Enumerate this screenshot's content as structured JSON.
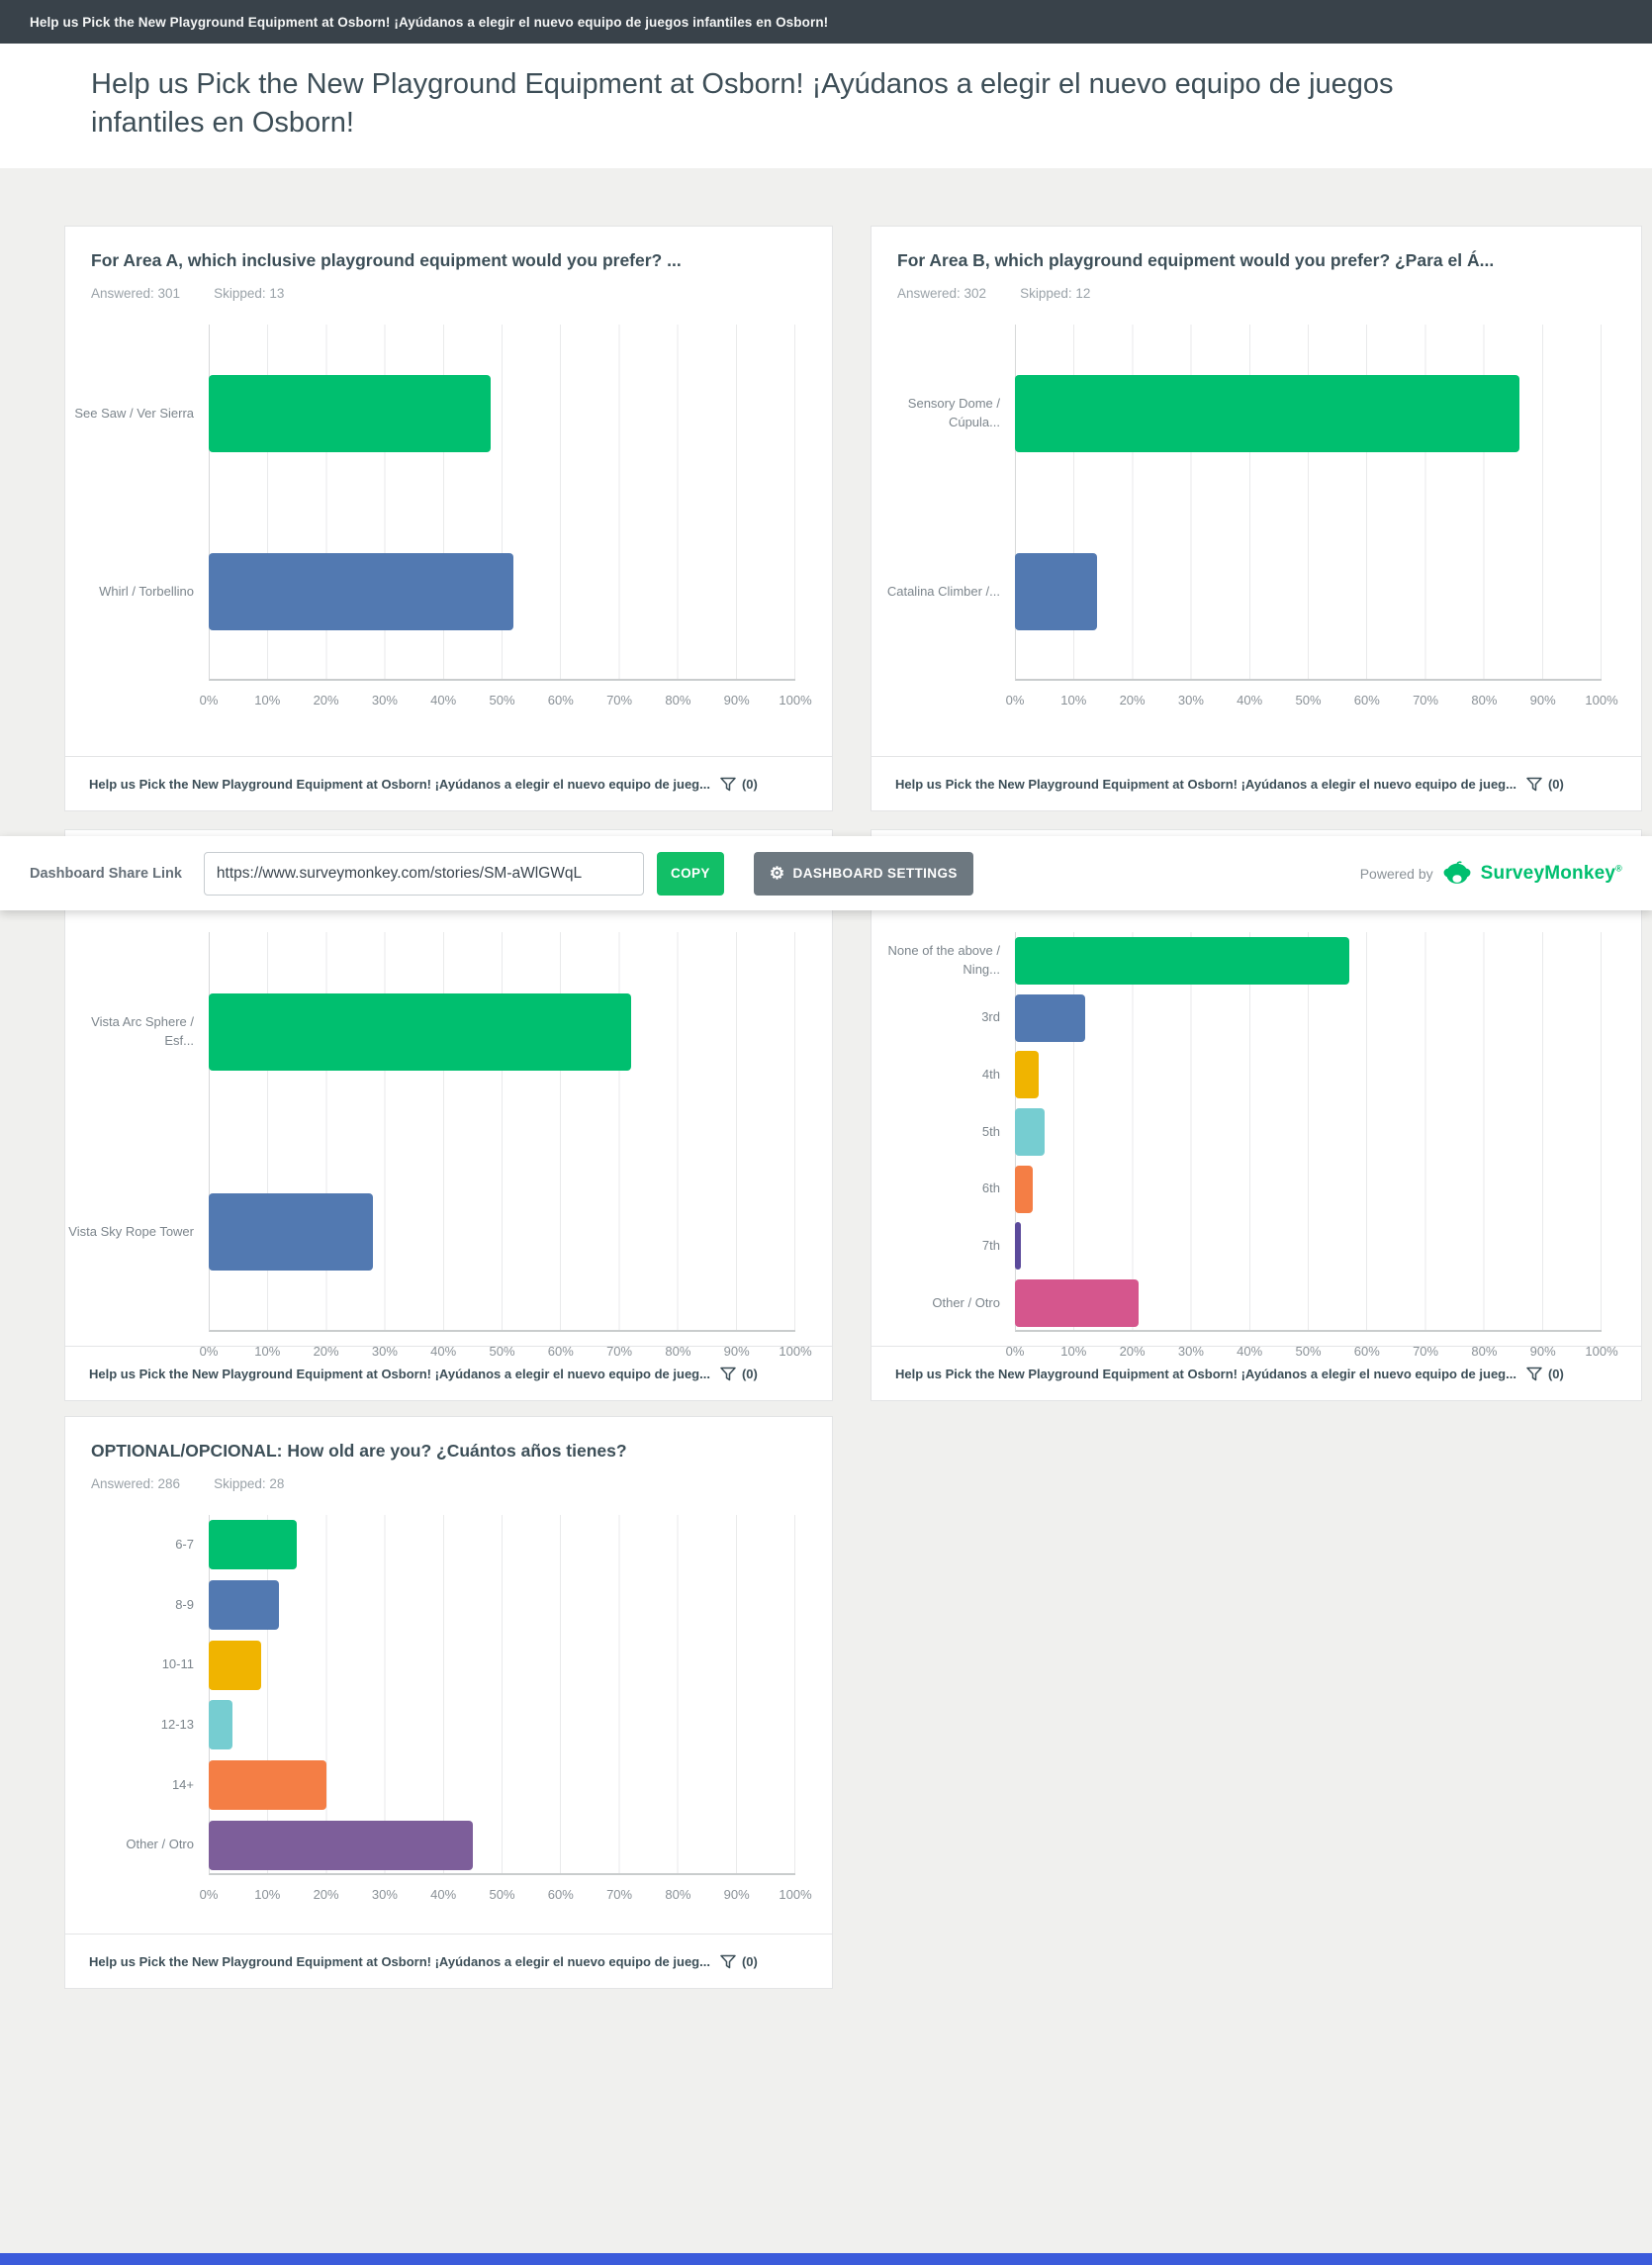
{
  "top_bar": {
    "title": "Help us Pick the New Playground Equipment at Osborn! ¡Ayúdanos a elegir el nuevo equipo de juegos infantiles en Osborn!"
  },
  "header": {
    "title": "Help us Pick the New Playground Equipment at Osborn! ¡Ayúdanos a elegir el nuevo equipo de juegos infantiles en Osborn!"
  },
  "share_bar": {
    "label": "Dashboard Share Link",
    "url": "https://www.surveymonkey.com/stories/SM-aWlGWqL",
    "copy": "COPY",
    "settings": "DASHBOARD SETTINGS",
    "powered_by": "Powered by",
    "brand": "SurveyMonkey",
    "brand_mark": "®"
  },
  "card_footer": {
    "text": "Help us Pick the New Playground Equipment at Osborn! ¡Ayúdanos a elegir el nuevo equipo de jueg...",
    "filter_count": "(0)"
  },
  "colors": {
    "green": "#00BF6F",
    "blue": "#5279B1",
    "yellow": "#F0B400",
    "teal": "#76CDD1",
    "orange": "#F47E45",
    "dark_purple": "#5B4A9B",
    "pink": "#D5568D",
    "purple": "#7D5E9A",
    "topbar_bg": "#39424A",
    "copy_button": "#12BF67",
    "settings_button": "#6D7880",
    "bottom_strip": "#3B5BDB"
  },
  "ticks": [
    "0%",
    "10%",
    "20%",
    "30%",
    "40%",
    "50%",
    "60%",
    "70%",
    "80%",
    "90%",
    "100%"
  ],
  "chart_data": [
    {
      "type": "bar",
      "orientation": "horizontal",
      "title": "For Area A, which inclusive playground equipment would you prefer? ...",
      "answered": "Answered: 301",
      "skipped": "Skipped: 13",
      "xlim": [
        0,
        100
      ],
      "bars": [
        {
          "label": "See Saw / Ver Sierra",
          "value": 48,
          "color": "#00BF6F"
        },
        {
          "label": "Whirl / Torbellino",
          "value": 52,
          "color": "#5279B1"
        }
      ]
    },
    {
      "type": "bar",
      "orientation": "horizontal",
      "title": "For Area B, which playground equipment would you prefer? ¿Para el Á...",
      "answered": "Answered: 302",
      "skipped": "Skipped: 12",
      "xlim": [
        0,
        100
      ],
      "bars": [
        {
          "label": "Sensory Dome / Cúpula...",
          "value": 86,
          "color": "#00BF6F"
        },
        {
          "label": "Catalina Climber /...",
          "value": 14,
          "color": "#5279B1"
        }
      ]
    },
    {
      "type": "bar",
      "orientation": "horizontal",
      "title": "",
      "answered": "",
      "skipped": "",
      "xlim": [
        0,
        100
      ],
      "bars": [
        {
          "label": "Vista Arc Sphere / Esf...",
          "value": 72,
          "color": "#00BF6F"
        },
        {
          "label": "Vista Sky Rope Tower",
          "value": 28,
          "color": "#5279B1"
        }
      ]
    },
    {
      "type": "bar",
      "orientation": "horizontal",
      "title": "",
      "answered": "",
      "skipped": "",
      "xlim": [
        0,
        100
      ],
      "bars": [
        {
          "label": "None of the above / Ning...",
          "value": 57,
          "color": "#00BF6F"
        },
        {
          "label": "3rd",
          "value": 12,
          "color": "#5279B1"
        },
        {
          "label": "4th",
          "value": 4,
          "color": "#F0B400"
        },
        {
          "label": "5th",
          "value": 5,
          "color": "#76CDD1"
        },
        {
          "label": "6th",
          "value": 3,
          "color": "#F47E45"
        },
        {
          "label": "7th",
          "value": 1,
          "color": "#5B4A9B"
        },
        {
          "label": "Other / Otro",
          "value": 21,
          "color": "#D5568D"
        }
      ]
    },
    {
      "type": "bar",
      "orientation": "horizontal",
      "title": "OPTIONAL/OPCIONAL: How old are you? ¿Cuántos años tienes?",
      "answered": "Answered: 286",
      "skipped": "Skipped: 28",
      "xlim": [
        0,
        100
      ],
      "bars": [
        {
          "label": "6-7",
          "value": 15,
          "color": "#00BF6F"
        },
        {
          "label": "8-9",
          "value": 12,
          "color": "#5279B1"
        },
        {
          "label": "10-11",
          "value": 9,
          "color": "#F0B400"
        },
        {
          "label": "12-13",
          "value": 4,
          "color": "#76CDD1"
        },
        {
          "label": "14+",
          "value": 20,
          "color": "#F47E45"
        },
        {
          "label": "Other / Otro",
          "value": 45,
          "color": "#7D5E9A"
        }
      ]
    }
  ]
}
